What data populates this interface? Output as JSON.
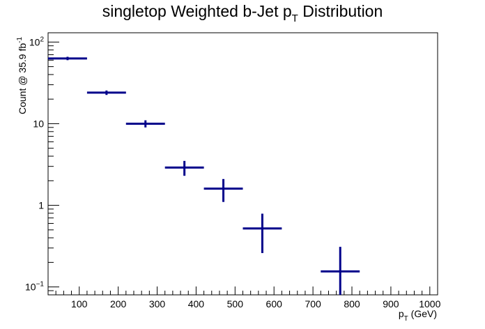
{
  "chart_data": {
    "type": "scatter",
    "style": "histogram-points-with-error-bars",
    "title": {
      "main": "singletop Weighted b-Jet p",
      "sub": "T",
      "tail": " Distribution"
    },
    "xlabel": {
      "main": "p",
      "sub": "T",
      "tail": " (GeV)"
    },
    "ylabel": {
      "main": "Count @ 35.9 fb",
      "sup": "-1"
    },
    "xlim": [
      20,
      1020
    ],
    "ylim": [
      0.08,
      130
    ],
    "yscale": "log",
    "grid": false,
    "legend": "none",
    "color": "#00008b",
    "x_ticks": [
      "100",
      "200",
      "300",
      "400",
      "500",
      "600",
      "700",
      "800",
      "900",
      "1000"
    ],
    "y_ticks": [
      {
        "value": 100,
        "label": "10",
        "sup": "2"
      },
      {
        "value": 10,
        "label": "10",
        "sup": ""
      },
      {
        "value": 1,
        "label": "1",
        "sup": ""
      },
      {
        "value": 0.1,
        "label": "10",
        "sup": "−1"
      }
    ],
    "points": [
      {
        "x_low": 20,
        "x_high": 120,
        "y": 63,
        "y_err_low": 60,
        "y_err_high": 66
      },
      {
        "x_low": 120,
        "x_high": 220,
        "y": 24,
        "y_err_low": 22.5,
        "y_err_high": 25.5
      },
      {
        "x_low": 220,
        "x_high": 320,
        "y": 10,
        "y_err_low": 9.0,
        "y_err_high": 11.0
      },
      {
        "x_low": 320,
        "x_high": 420,
        "y": 2.9,
        "y_err_low": 2.3,
        "y_err_high": 3.5
      },
      {
        "x_low": 420,
        "x_high": 520,
        "y": 1.6,
        "y_err_low": 1.1,
        "y_err_high": 2.1
      },
      {
        "x_low": 520,
        "x_high": 620,
        "y": 0.52,
        "y_err_low": 0.26,
        "y_err_high": 0.79
      },
      {
        "x_low": 720,
        "x_high": 820,
        "y": 0.155,
        "y_err_low": 0.07,
        "y_err_high": 0.31
      }
    ]
  }
}
